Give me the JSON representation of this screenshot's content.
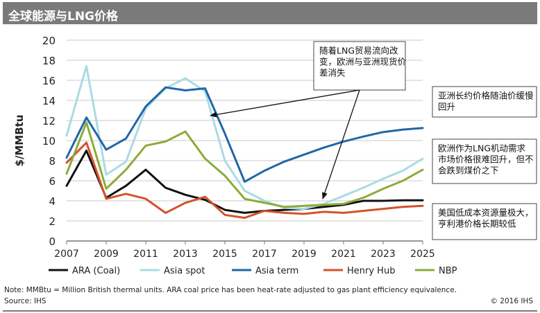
{
  "chart_data": {
    "type": "line",
    "title": "全球能源与LNG价格",
    "ylabel": "$/MMBtu",
    "xlabel": "",
    "ylim": [
      0,
      20
    ],
    "yticks": [
      0,
      2,
      4,
      6,
      8,
      10,
      12,
      14,
      16,
      18,
      20
    ],
    "xlim": [
      2007,
      2025
    ],
    "xticks": [
      2007,
      2009,
      2011,
      2013,
      2015,
      2017,
      2019,
      2021,
      2023,
      2025
    ],
    "x": [
      2007,
      2008,
      2009,
      2010,
      2011,
      2012,
      2013,
      2014,
      2015,
      2016,
      2017,
      2018,
      2019,
      2020,
      2021,
      2022,
      2023,
      2024,
      2025
    ],
    "series": [
      {
        "name": "ARA (Coal)",
        "color": "#111111",
        "values": [
          5.5,
          9.0,
          4.3,
          5.5,
          7.1,
          5.3,
          4.6,
          4.1,
          3.1,
          2.8,
          3.0,
          3.1,
          3.2,
          3.4,
          3.6,
          4.0,
          4.0,
          4.05,
          4.05
        ]
      },
      {
        "name": "Asia spot",
        "color": "#a9dbe3",
        "values": [
          10.5,
          17.4,
          6.6,
          7.9,
          13.2,
          15.2,
          16.2,
          14.9,
          8.0,
          5.0,
          4.0,
          3.3,
          3.2,
          3.7,
          4.5,
          5.3,
          6.2,
          7.0,
          8.2
        ]
      },
      {
        "name": "Asia term",
        "color": "#1f66a8",
        "values": [
          8.3,
          12.3,
          9.1,
          10.2,
          13.4,
          15.3,
          15.0,
          15.2,
          10.7,
          5.9,
          7.0,
          7.9,
          8.6,
          9.3,
          9.9,
          10.4,
          10.85,
          11.1,
          11.25
        ]
      },
      {
        "name": "Henry Hub",
        "color": "#d2522c",
        "values": [
          7.8,
          9.8,
          4.2,
          4.7,
          4.2,
          2.8,
          3.8,
          4.4,
          2.6,
          2.3,
          3.0,
          2.8,
          2.7,
          2.9,
          2.8,
          3.0,
          3.2,
          3.4,
          3.5
        ]
      },
      {
        "name": "NBP",
        "color": "#8cab3a",
        "values": [
          6.7,
          11.8,
          5.2,
          7.1,
          9.5,
          9.9,
          10.9,
          8.2,
          6.5,
          4.2,
          3.8,
          3.4,
          3.5,
          3.6,
          3.7,
          4.3,
          5.2,
          6.0,
          7.1
        ]
      }
    ],
    "annotations": {
      "shift": "随着LNG贸易流向改变，欧洲与亚洲现货价差消失",
      "asia_term": "亚洲长约价格随油价缓慢回升",
      "europe": "欧洲作为LNG机动需求市场价格很难回升，但不会跌到煤价之下",
      "us": "美国低成本资源量极大，亨利港价格长期较低"
    },
    "note": "Note: MMBtu = Million British thermal units. ARA coal price has been heat-rate adjusted to gas plant efficiency equivalence.",
    "source": "Source: IHS",
    "copyright": "© 2016 IHS"
  }
}
